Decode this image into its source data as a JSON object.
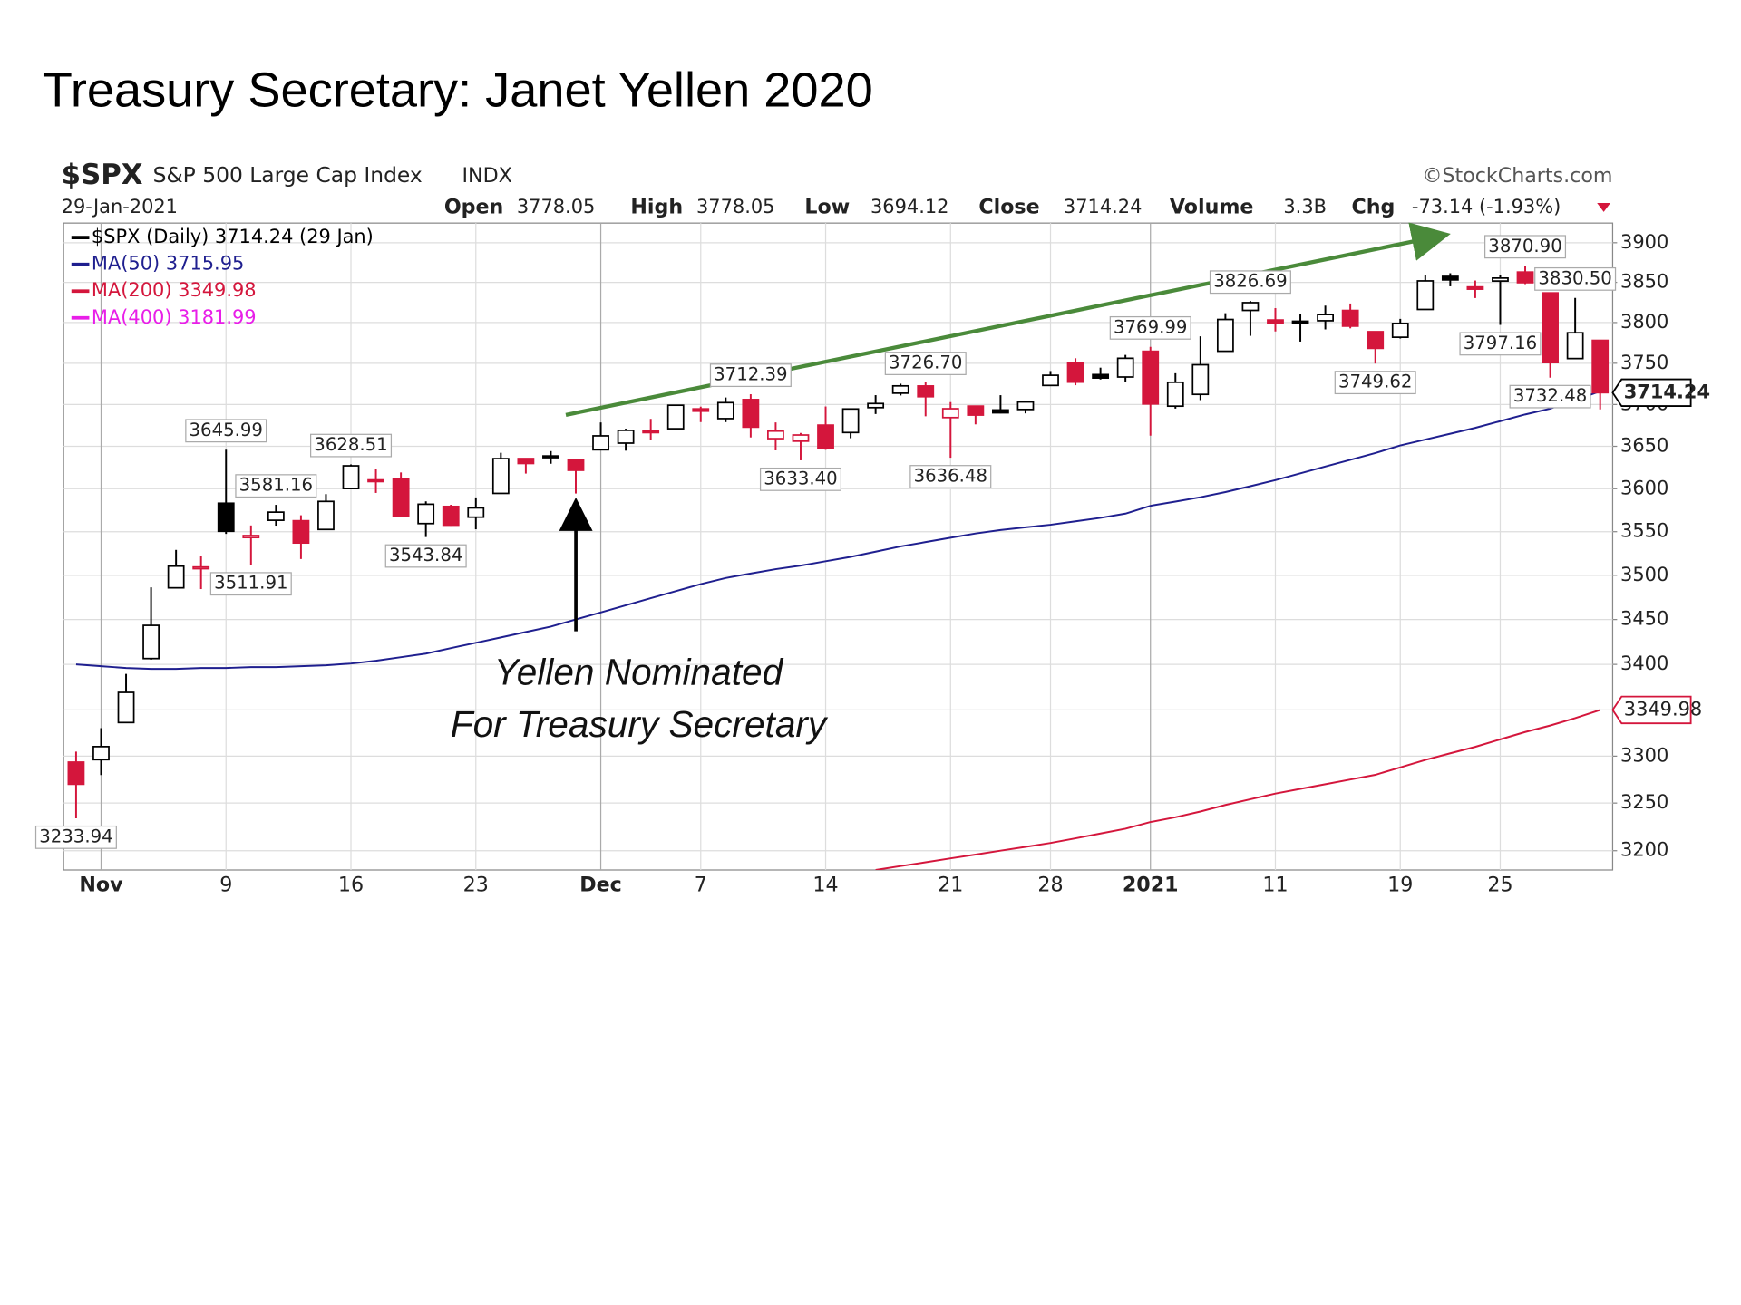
{
  "chart_data": {
    "type": "candlestick",
    "title": "Treasury Secretary: Janet Yellen 2020",
    "header": {
      "symbol": "$SPX",
      "name": "S&P 500 Large Cap Index",
      "exchange": "INDX",
      "date": "29-Jan-2021",
      "stats": [
        {
          "label": "Open",
          "value": 3778.05
        },
        {
          "label": "High",
          "value": 3778.05
        },
        {
          "label": "Low",
          "value": 3694.12
        },
        {
          "label": "Close",
          "value": 3714.24
        },
        {
          "label": "Volume",
          "value": "3.3B"
        },
        {
          "label": "Chg",
          "value": "-73.14 (-1.93%)"
        }
      ],
      "credit": "©StockCharts.com"
    },
    "price_name": "$SPX (Daily)",
    "price_date": "(29 Jan)",
    "categories": [
      null,
      "Nov",
      null,
      null,
      null,
      null,
      "9",
      null,
      null,
      null,
      null,
      "16",
      null,
      null,
      null,
      null,
      "23",
      null,
      null,
      null,
      null,
      "Dec",
      null,
      null,
      null,
      "7",
      null,
      null,
      null,
      null,
      "14",
      null,
      null,
      null,
      null,
      "21",
      null,
      null,
      null,
      "28",
      null,
      null,
      null,
      "2021",
      null,
      null,
      null,
      null,
      "11",
      null,
      null,
      null,
      null,
      "19",
      null,
      null,
      null,
      "25",
      null,
      null,
      null,
      null
    ],
    "open": [
      3293.59,
      3296.2,
      3336.25,
      3406.46,
      3485.74,
      3508.34,
      3583.04,
      3543.26,
      3563.22,
      3562.67,
      3552.57,
      3600.16,
      3610.31,
      3612.09,
      3559.41,
      3579.31,
      3566.82,
      3594.52,
      3635.5,
      3638.55,
      3634.18,
      3645.87,
      3653.78,
      3668.28,
      3670.94,
      3694.73,
      3683.05,
      3705.98,
      3659.13,
      3656.08,
      3675.27,
      3666.41,
      3696.25,
      3713.65,
      3722.39,
      3684.28,
      3698.08,
      3693.42,
      3694.03,
      3723.03,
      3750.01,
      3736.19,
      3733.27,
      3764.61,
      3698.02,
      3712.2,
      3764.71,
      3815.05,
      3803.14,
      3801.62,
      3802.23,
      3814.98,
      3788.73,
      3781.88,
      3816.22,
      3857.46,
      3844.24,
      3851.68,
      3862.96,
      3836.83,
      3755.75,
      3778.05
    ],
    "high": [
      3304.93,
      3330.14,
      3389.49,
      3486.25,
      3529.05,
      3521.58,
      3645.99,
      3557.22,
      3581.16,
      3569.02,
      3593.66,
      3628.51,
      3623.11,
      3619.09,
      3585.22,
      3581.23,
      3589.81,
      3642.31,
      3635.5,
      3644.31,
      3634.18,
      3678.45,
      3670.96,
      3682.73,
      3699.2,
      3697.41,
      3708.45,
      3712.39,
      3678.49,
      3665.91,
      3697.61,
      3695.29,
      3711.27,
      3725.12,
      3726.7,
      3702.9,
      3698.26,
      3711.24,
      3703.82,
      3740.51,
      3756.12,
      3744.63,
      3760.2,
      3769.99,
      3737.83,
      3783.04,
      3811.55,
      3826.69,
      3817.86,
      3810.78,
      3820.96,
      3823.6,
      3788.73,
      3804.53,
      3859.75,
      3861.45,
      3852.31,
      3859.23,
      3870.9,
      3836.83,
      3830.5,
      3778.05
    ],
    "low": [
      3233.94,
      3279.74,
      3336.25,
      3405.17,
      3485.74,
      3484.34,
      3547.48,
      3511.91,
      3557.0,
      3518.58,
      3552.57,
      3600.16,
      3595.06,
      3567.33,
      3543.84,
      3556.85,
      3552.77,
      3594.52,
      3617.76,
      3629.33,
      3594.39,
      3645.87,
      3644.84,
      3657.17,
      3670.94,
      3678.88,
      3678.83,
      3660.54,
      3645.18,
      3633.4,
      3645.84,
      3659.62,
      3688.57,
      3710.87,
      3685.84,
      3636.48,
      3676.16,
      3689.32,
      3689.32,
      3723.03,
      3723.31,
      3730.21,
      3726.88,
      3662.71,
      3695.07,
      3705.34,
      3764.71,
      3783.6,
      3789.02,
      3776.51,
      3791.5,
      3792.86,
      3749.62,
      3780.37,
      3816.22,
      3845.05,
      3830.41,
      3797.16,
      3847.78,
      3732.48,
      3755.75,
      3694.12
    ],
    "close": [
      3269.96,
      3310.24,
      3369.16,
      3443.44,
      3510.45,
      3509.44,
      3550.5,
      3545.53,
      3572.66,
      3537.01,
      3585.15,
      3626.91,
      3609.53,
      3567.79,
      3581.87,
      3557.54,
      3577.59,
      3635.41,
      3629.65,
      3638.35,
      3621.63,
      3662.45,
      3669.01,
      3666.72,
      3699.12,
      3691.96,
      3702.25,
      3672.82,
      3668.1,
      3663.46,
      3647.49,
      3694.62,
      3701.17,
      3722.48,
      3709.41,
      3694.92,
      3687.26,
      3690.01,
      3703.06,
      3735.36,
      3727.04,
      3732.04,
      3756.07,
      3700.65,
      3726.86,
      3748.14,
      3803.79,
      3824.68,
      3799.61,
      3801.19,
      3809.84,
      3795.54,
      3768.25,
      3798.91,
      3851.85,
      3853.07,
      3841.47,
      3855.36,
      3849.62,
      3750.77,
      3787.38,
      3714.24
    ],
    "high_labels": [
      null,
      null,
      null,
      null,
      null,
      null,
      "3645.99",
      null,
      "3581.16",
      null,
      null,
      "3628.51",
      null,
      null,
      null,
      null,
      null,
      null,
      null,
      null,
      null,
      null,
      null,
      null,
      null,
      null,
      null,
      "3712.39",
      null,
      null,
      null,
      null,
      null,
      null,
      "3726.70",
      null,
      null,
      null,
      null,
      null,
      null,
      null,
      null,
      "3769.99",
      null,
      null,
      null,
      "3826.69",
      null,
      null,
      null,
      null,
      null,
      null,
      null,
      null,
      null,
      null,
      "3870.90",
      null,
      "3830.50",
      null
    ],
    "low_labels": [
      "3233.94",
      null,
      null,
      null,
      null,
      null,
      null,
      "3511.91",
      null,
      null,
      null,
      null,
      null,
      null,
      "3543.84",
      null,
      null,
      null,
      null,
      null,
      null,
      null,
      null,
      null,
      null,
      null,
      null,
      null,
      null,
      "3633.40",
      null,
      null,
      null,
      null,
      null,
      "3636.48",
      null,
      null,
      null,
      null,
      null,
      null,
      null,
      null,
      null,
      null,
      null,
      null,
      null,
      null,
      null,
      null,
      "3749.62",
      null,
      null,
      null,
      null,
      "3797.16",
      null,
      "3732.48",
      null,
      null
    ],
    "up_color": "#000000",
    "down_color": "#d4163c",
    "series": [
      {
        "name": "MA(50)",
        "color": "#1f1f8f",
        "values": [
          3400,
          3398,
          3396,
          3395,
          3395,
          3396,
          3396,
          3397,
          3397,
          3398,
          3399,
          3401,
          3404,
          3408,
          3412,
          3418,
          3424,
          3430,
          3436,
          3442,
          3450,
          3458,
          3466,
          3474,
          3482,
          3490,
          3497,
          3502,
          3507,
          3511,
          3516,
          3521,
          3527,
          3533,
          3538,
          3543,
          3548,
          3552,
          3555,
          3558,
          3562,
          3566,
          3571,
          3580,
          3585,
          3590,
          3596,
          3603,
          3610,
          3618,
          3626,
          3634,
          3642,
          3651,
          3658,
          3665,
          3672,
          3680,
          3688,
          3695,
          3705,
          3715.95
        ]
      },
      {
        "name": "MA(200)",
        "color": "#d4163c",
        "values": [
          null,
          null,
          null,
          null,
          null,
          null,
          null,
          null,
          null,
          null,
          null,
          null,
          null,
          null,
          null,
          null,
          null,
          null,
          null,
          null,
          null,
          null,
          null,
          null,
          null,
          null,
          null,
          null,
          null,
          null,
          null,
          null,
          3180,
          3184,
          3188,
          3192,
          3196,
          3200,
          3204,
          3208,
          3213,
          3218,
          3223,
          3230,
          3235,
          3241,
          3248,
          3254,
          3260,
          3265,
          3270,
          3275,
          3280,
          3288,
          3296,
          3303,
          3310,
          3318,
          3326,
          3333,
          3341,
          3349.98
        ]
      }
    ],
    "legend_extra": {
      "name": "MA(400)",
      "value": 3181.99,
      "color": "#e81ee8"
    },
    "ylim": [
      3180,
      3925
    ],
    "yticks": [
      3200,
      3250,
      3300,
      3350,
      3400,
      3450,
      3500,
      3550,
      3600,
      3650,
      3700,
      3750,
      3800,
      3850,
      3900
    ],
    "log_scale": true,
    "grid": true,
    "annotation": [
      "Yellen Nominated",
      "For Treasury Secretary"
    ]
  }
}
